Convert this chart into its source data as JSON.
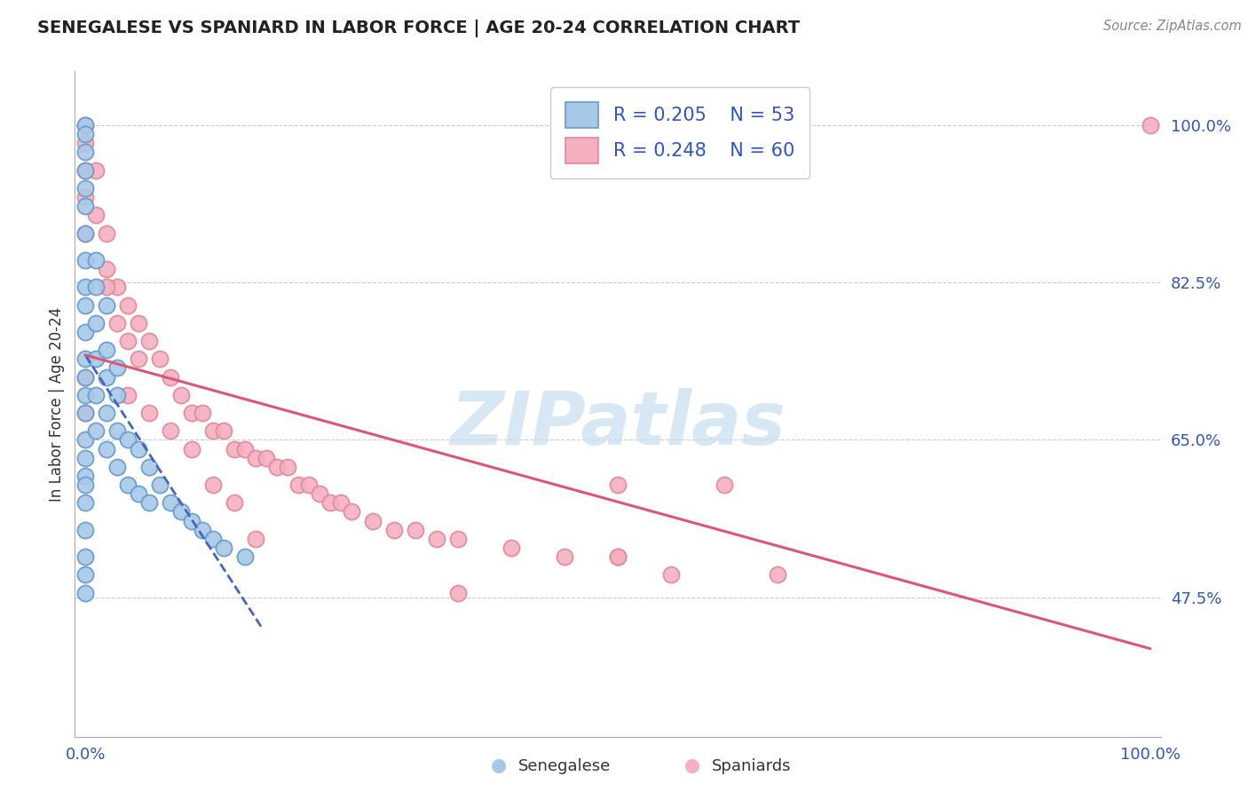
{
  "title": "SENEGALESE VS SPANIARD IN LABOR FORCE | AGE 20-24 CORRELATION CHART",
  "source": "Source: ZipAtlas.com",
  "ylabel": "In Labor Force | Age 20-24",
  "xlim_min": -0.01,
  "xlim_max": 1.01,
  "ylim_min": 0.32,
  "ylim_max": 1.06,
  "yticks": [
    0.475,
    0.65,
    0.825,
    1.0
  ],
  "ytick_labels": [
    "47.5%",
    "65.0%",
    "82.5%",
    "100.0%"
  ],
  "xtick_labels": [
    "0.0%",
    "100.0%"
  ],
  "blue_R": 0.205,
  "blue_N": 53,
  "pink_R": 0.248,
  "pink_N": 60,
  "blue_fill": "#A8C8E8",
  "pink_fill": "#F5B0C0",
  "blue_edge": "#6699CC",
  "pink_edge": "#E08898",
  "trend_blue_color": "#4466BB",
  "trend_pink_color": "#DD5577",
  "bg_color": "#FFFFFF",
  "watermark_color": "#C8DEF0",
  "legend_label_blue": "Senegalese",
  "legend_label_pink": "Spaniards",
  "title_color": "#222222",
  "source_color": "#888888",
  "tick_color": "#3355BB",
  "ylabel_color": "#333333",
  "grid_color": "#CCCCCC",
  "legend_text_color": "#3355BB",
  "bottom_label_color": "#333333",
  "blue_seed": 17,
  "pink_seed": 83,
  "blue_points_x": [
    0.0,
    0.0,
    0.0,
    0.0,
    0.0,
    0.0,
    0.0,
    0.0,
    0.0,
    0.0,
    0.0,
    0.0,
    0.0,
    0.0,
    0.0,
    0.0,
    0.0,
    0.0,
    0.0,
    0.0,
    0.0,
    0.01,
    0.01,
    0.01,
    0.01,
    0.01,
    0.02,
    0.02,
    0.02,
    0.02,
    0.03,
    0.03,
    0.03,
    0.04,
    0.04,
    0.05,
    0.05,
    0.06,
    0.06,
    0.07,
    0.08,
    0.09,
    0.1,
    0.11,
    0.12,
    0.13,
    0.02,
    0.03,
    0.01,
    0.0,
    0.0,
    0.15,
    0.0
  ],
  "blue_points_y": [
    1.0,
    0.99,
    0.97,
    0.95,
    0.93,
    0.91,
    0.88,
    0.85,
    0.82,
    0.8,
    0.77,
    0.74,
    0.72,
    0.7,
    0.68,
    0.65,
    0.63,
    0.61,
    0.6,
    0.58,
    0.55,
    0.82,
    0.78,
    0.74,
    0.7,
    0.66,
    0.75,
    0.72,
    0.68,
    0.64,
    0.7,
    0.66,
    0.62,
    0.65,
    0.6,
    0.64,
    0.59,
    0.62,
    0.58,
    0.6,
    0.58,
    0.57,
    0.56,
    0.55,
    0.54,
    0.53,
    0.8,
    0.73,
    0.85,
    0.52,
    0.5,
    0.52,
    0.48
  ],
  "pink_points_x": [
    0.0,
    0.0,
    0.0,
    0.0,
    0.0,
    0.01,
    0.01,
    0.02,
    0.02,
    0.03,
    0.03,
    0.04,
    0.04,
    0.05,
    0.05,
    0.06,
    0.07,
    0.08,
    0.09,
    0.1,
    0.11,
    0.12,
    0.13,
    0.14,
    0.15,
    0.16,
    0.17,
    0.18,
    0.19,
    0.2,
    0.21,
    0.22,
    0.23,
    0.24,
    0.25,
    0.27,
    0.29,
    0.31,
    0.33,
    0.35,
    0.4,
    0.45,
    0.5,
    0.55,
    0.6,
    0.65,
    0.04,
    0.06,
    0.08,
    0.1,
    0.12,
    0.14,
    0.16,
    0.02,
    0.0,
    0.0,
    1.0,
    0.5,
    0.5,
    0.35
  ],
  "pink_points_y": [
    1.0,
    0.98,
    0.95,
    0.92,
    0.88,
    0.95,
    0.9,
    0.88,
    0.84,
    0.82,
    0.78,
    0.8,
    0.76,
    0.78,
    0.74,
    0.76,
    0.74,
    0.72,
    0.7,
    0.68,
    0.68,
    0.66,
    0.66,
    0.64,
    0.64,
    0.63,
    0.63,
    0.62,
    0.62,
    0.6,
    0.6,
    0.59,
    0.58,
    0.58,
    0.57,
    0.56,
    0.55,
    0.55,
    0.54,
    0.54,
    0.53,
    0.52,
    0.52,
    0.5,
    0.6,
    0.5,
    0.7,
    0.68,
    0.66,
    0.64,
    0.6,
    0.58,
    0.54,
    0.82,
    0.72,
    0.68,
    1.0,
    0.6,
    0.52,
    0.48
  ]
}
